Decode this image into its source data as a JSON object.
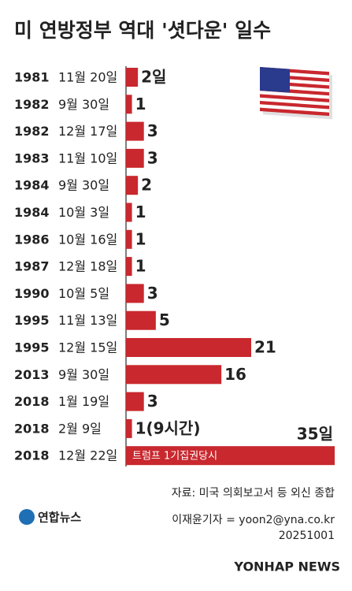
{
  "chart_data": {
    "type": "bar",
    "orientation": "horizontal",
    "title": "미 연방정부 역대 '셧다운' 일수",
    "years": [
      "1981",
      "1982",
      "1982",
      "1983",
      "1984",
      "1984",
      "1986",
      "1987",
      "1990",
      "1995",
      "1995",
      "2013",
      "2018",
      "2018",
      "2018"
    ],
    "categories": [
      "11월 20일",
      "9월 30일",
      "12월 17일",
      "11월 10일",
      "9월 30일",
      "10월 3일",
      "10월 16일",
      "12월 18일",
      "10월 5일",
      "11월 13일",
      "12월 15일",
      "9월 30일",
      "1월 19일",
      "2월 9일",
      "12월 22일"
    ],
    "values": [
      2,
      1,
      3,
      3,
      2,
      1,
      1,
      1,
      3,
      5,
      21,
      16,
      3,
      1,
      35
    ],
    "value_labels": [
      "2일",
      "1",
      "3",
      "3",
      "2",
      "1",
      "1",
      "1",
      "3",
      "5",
      "21",
      "16",
      "3",
      "1(9시간)",
      "35일"
    ],
    "color": "#c8282e",
    "annotation": "트럼프 1기집권당시",
    "source": "자료: 미국 의회보고서 등 외신 종합",
    "byline": "이재윤기자 = yoon2@yna.co.kr",
    "date_code": "20251001",
    "logo": "연합뉴스",
    "watermark": "YONHAP NEWS"
  }
}
